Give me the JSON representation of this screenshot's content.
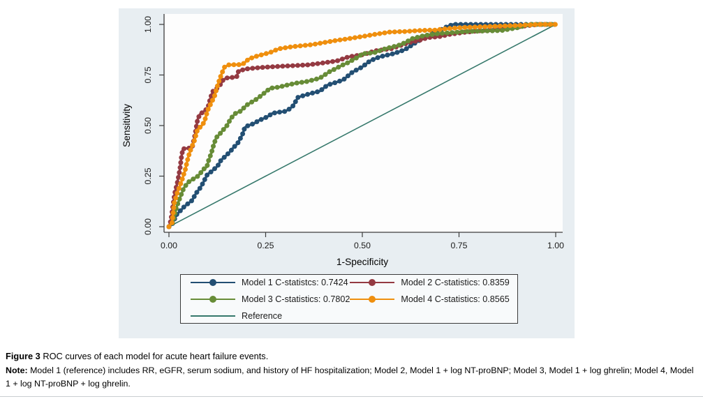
{
  "figure": {
    "background": "#e8eef2",
    "plot_background": "#fdfdfd",
    "axis_color": "#3c3c3c",
    "tick_label_color": "#1a1a1a"
  },
  "chart_data": {
    "type": "line",
    "title": "",
    "xlabel": "1-Specificity",
    "ylabel": "Sensitivity",
    "xlim": [
      0,
      1
    ],
    "ylim": [
      0,
      1
    ],
    "grid": false,
    "legend_position": "bottom",
    "xticks": [
      {
        "v": 0,
        "label": "0.00"
      },
      {
        "v": 0.25,
        "label": "0.25"
      },
      {
        "v": 0.5,
        "label": "0.50"
      },
      {
        "v": 0.75,
        "label": "0.75"
      },
      {
        "v": 1,
        "label": "1.00"
      }
    ],
    "yticks": [
      {
        "v": 0,
        "label": "0.00"
      },
      {
        "v": 0.25,
        "label": "0.25"
      },
      {
        "v": 0.5,
        "label": "0.50"
      },
      {
        "v": 0.75,
        "label": "0.75"
      },
      {
        "v": 1,
        "label": "1.00"
      }
    ],
    "series": [
      {
        "name": "Model 1 C-statistcs: 0.7424",
        "color": "#234f73",
        "marker": "circle",
        "c_statistic": 0.7424,
        "points": [
          [
            0,
            0
          ],
          [
            0.008,
            0.01
          ],
          [
            0.02,
            0.06
          ],
          [
            0.04,
            0.1
          ],
          [
            0.05,
            0.115
          ],
          [
            0.06,
            0.13
          ],
          [
            0.07,
            0.165
          ],
          [
            0.08,
            0.19
          ],
          [
            0.088,
            0.215
          ],
          [
            0.093,
            0.235
          ],
          [
            0.1,
            0.26
          ],
          [
            0.108,
            0.27
          ],
          [
            0.117,
            0.285
          ],
          [
            0.126,
            0.3
          ],
          [
            0.135,
            0.33
          ],
          [
            0.147,
            0.35
          ],
          [
            0.16,
            0.375
          ],
          [
            0.166,
            0.39
          ],
          [
            0.177,
            0.41
          ],
          [
            0.19,
            0.455
          ],
          [
            0.196,
            0.49
          ],
          [
            0.205,
            0.5
          ],
          [
            0.22,
            0.51
          ],
          [
            0.232,
            0.525
          ],
          [
            0.245,
            0.535
          ],
          [
            0.256,
            0.545
          ],
          [
            0.267,
            0.56
          ],
          [
            0.28,
            0.565
          ],
          [
            0.3,
            0.57
          ],
          [
            0.31,
            0.58
          ],
          [
            0.32,
            0.595
          ],
          [
            0.334,
            0.64
          ],
          [
            0.36,
            0.655
          ],
          [
            0.39,
            0.67
          ],
          [
            0.41,
            0.7
          ],
          [
            0.426,
            0.71
          ],
          [
            0.45,
            0.725
          ],
          [
            0.475,
            0.765
          ],
          [
            0.5,
            0.79
          ],
          [
            0.52,
            0.82
          ],
          [
            0.545,
            0.84
          ],
          [
            0.58,
            0.855
          ],
          [
            0.61,
            0.875
          ],
          [
            0.63,
            0.9
          ],
          [
            0.655,
            0.93
          ],
          [
            0.675,
            0.95
          ],
          [
            0.7,
            0.97
          ],
          [
            0.72,
            0.99
          ],
          [
            0.735,
            1.0
          ],
          [
            1,
            1
          ]
        ]
      },
      {
        "name": "Model 2 C-statistics: 0.8359",
        "color": "#943a42",
        "marker": "circle",
        "c_statistic": 0.8359,
        "points": [
          [
            0,
            0
          ],
          [
            0.005,
            0.03
          ],
          [
            0.01,
            0.1
          ],
          [
            0.015,
            0.165
          ],
          [
            0.022,
            0.22
          ],
          [
            0.028,
            0.28
          ],
          [
            0.032,
            0.34
          ],
          [
            0.036,
            0.385
          ],
          [
            0.06,
            0.39
          ],
          [
            0.068,
            0.46
          ],
          [
            0.074,
            0.53
          ],
          [
            0.08,
            0.555
          ],
          [
            0.09,
            0.57
          ],
          [
            0.1,
            0.585
          ],
          [
            0.108,
            0.64
          ],
          [
            0.114,
            0.67
          ],
          [
            0.122,
            0.68
          ],
          [
            0.134,
            0.705
          ],
          [
            0.14,
            0.725
          ],
          [
            0.148,
            0.735
          ],
          [
            0.175,
            0.74
          ],
          [
            0.18,
            0.77
          ],
          [
            0.2,
            0.78
          ],
          [
            0.225,
            0.785
          ],
          [
            0.26,
            0.79
          ],
          [
            0.31,
            0.795
          ],
          [
            0.36,
            0.8
          ],
          [
            0.4,
            0.81
          ],
          [
            0.435,
            0.82
          ],
          [
            0.465,
            0.84
          ],
          [
            0.5,
            0.85
          ],
          [
            0.535,
            0.87
          ],
          [
            0.575,
            0.88
          ],
          [
            0.62,
            0.91
          ],
          [
            0.645,
            0.92
          ],
          [
            0.67,
            0.935
          ],
          [
            0.7,
            0.94
          ],
          [
            0.724,
            0.95
          ],
          [
            0.76,
            0.96
          ],
          [
            0.81,
            0.97
          ],
          [
            0.86,
            0.98
          ],
          [
            0.91,
            0.99
          ],
          [
            0.955,
            1.0
          ],
          [
            1,
            1
          ]
        ]
      },
      {
        "name": "Model 3 C-statistics: 0.7802",
        "color": "#678c37",
        "marker": "circle",
        "c_statistic": 0.7802,
        "points": [
          [
            0,
            0
          ],
          [
            0.01,
            0.02
          ],
          [
            0.02,
            0.1
          ],
          [
            0.028,
            0.14
          ],
          [
            0.038,
            0.19
          ],
          [
            0.05,
            0.22
          ],
          [
            0.062,
            0.235
          ],
          [
            0.075,
            0.25
          ],
          [
            0.09,
            0.285
          ],
          [
            0.098,
            0.295
          ],
          [
            0.103,
            0.33
          ],
          [
            0.109,
            0.36
          ],
          [
            0.115,
            0.4
          ],
          [
            0.122,
            0.44
          ],
          [
            0.13,
            0.455
          ],
          [
            0.14,
            0.478
          ],
          [
            0.15,
            0.5
          ],
          [
            0.16,
            0.535
          ],
          [
            0.172,
            0.56
          ],
          [
            0.186,
            0.572
          ],
          [
            0.2,
            0.6
          ],
          [
            0.214,
            0.616
          ],
          [
            0.226,
            0.63
          ],
          [
            0.24,
            0.65
          ],
          [
            0.252,
            0.67
          ],
          [
            0.263,
            0.685
          ],
          [
            0.285,
            0.69
          ],
          [
            0.3,
            0.698
          ],
          [
            0.33,
            0.71
          ],
          [
            0.355,
            0.717
          ],
          [
            0.39,
            0.734
          ],
          [
            0.415,
            0.766
          ],
          [
            0.45,
            0.8
          ],
          [
            0.462,
            0.81
          ],
          [
            0.49,
            0.84
          ],
          [
            0.5,
            0.855
          ],
          [
            0.53,
            0.86
          ],
          [
            0.56,
            0.88
          ],
          [
            0.6,
            0.9
          ],
          [
            0.63,
            0.93
          ],
          [
            0.66,
            0.945
          ],
          [
            0.7,
            0.955
          ],
          [
            0.77,
            0.965
          ],
          [
            0.86,
            0.97
          ],
          [
            0.905,
            0.985
          ],
          [
            0.93,
            1.0
          ],
          [
            1,
            1
          ]
        ]
      },
      {
        "name": "Model 4 C-statistics: 0.8565",
        "color": "#ef8f0e",
        "marker": "circle",
        "c_statistic": 0.8565,
        "points": [
          [
            0,
            0
          ],
          [
            0.008,
            0.02
          ],
          [
            0.014,
            0.12
          ],
          [
            0.022,
            0.17
          ],
          [
            0.03,
            0.21
          ],
          [
            0.042,
            0.28
          ],
          [
            0.05,
            0.345
          ],
          [
            0.058,
            0.39
          ],
          [
            0.065,
            0.42
          ],
          [
            0.074,
            0.48
          ],
          [
            0.085,
            0.5
          ],
          [
            0.092,
            0.52
          ],
          [
            0.1,
            0.575
          ],
          [
            0.11,
            0.615
          ],
          [
            0.117,
            0.64
          ],
          [
            0.126,
            0.7
          ],
          [
            0.135,
            0.75
          ],
          [
            0.144,
            0.79
          ],
          [
            0.155,
            0.8
          ],
          [
            0.19,
            0.802
          ],
          [
            0.207,
            0.83
          ],
          [
            0.23,
            0.845
          ],
          [
            0.26,
            0.86
          ],
          [
            0.285,
            0.88
          ],
          [
            0.32,
            0.89
          ],
          [
            0.37,
            0.9
          ],
          [
            0.4,
            0.91
          ],
          [
            0.43,
            0.92
          ],
          [
            0.466,
            0.93
          ],
          [
            0.5,
            0.94
          ],
          [
            0.53,
            0.95
          ],
          [
            0.57,
            0.962
          ],
          [
            0.61,
            0.965
          ],
          [
            0.65,
            0.97
          ],
          [
            0.69,
            0.972
          ],
          [
            0.713,
            0.978
          ],
          [
            0.76,
            0.985
          ],
          [
            0.83,
            0.99
          ],
          [
            0.9,
            0.995
          ],
          [
            0.96,
            1.0
          ],
          [
            1,
            1
          ]
        ]
      },
      {
        "name": "Reference",
        "color": "#35786b",
        "marker": "none",
        "points": [
          [
            0,
            0
          ],
          [
            1,
            1
          ]
        ]
      }
    ]
  },
  "caption": {
    "label": "Figure 3",
    "text": " ROC curves of each model for acute heart failure events."
  },
  "note": {
    "label": "Note:",
    "text": " Model 1 (reference) includes RR, eGFR, serum sodium, and history of HF hospitalization; Model 2, Model 1 + log NT-proBNP; Model 3, Model 1 + log ghrelin; Model 4, Model 1 + log NT-proBNP + log ghrelin."
  }
}
